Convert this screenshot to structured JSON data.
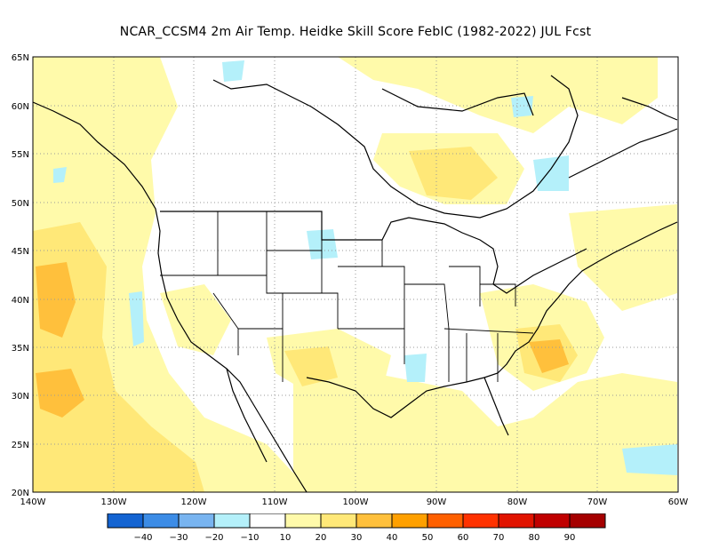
{
  "title": "NCAR_CCSM4  2m Air Temp. Heidke Skill Score FebIC (1982-2022) JUL Fcst",
  "lat_ticks": [
    "65N",
    "60N",
    "55N",
    "50N",
    "45N",
    "40N",
    "35N",
    "30N",
    "25N",
    "20N"
  ],
  "lon_ticks": [
    "140W",
    "130W",
    "120W",
    "110W",
    "100W",
    "90W",
    "80W",
    "70W",
    "60W"
  ],
  "colorbar": {
    "colors": [
      "#1464d2",
      "#3c8ce6",
      "#78b4f0",
      "#b4f0fa",
      "#ffffff",
      "#fffaaa",
      "#ffe878",
      "#ffc03c",
      "#ffa000",
      "#ff6000",
      "#ff3200",
      "#e11400",
      "#c00000",
      "#a50000"
    ],
    "labels": [
      "−40",
      "−30",
      "−20",
      "−10",
      "10",
      "20",
      "30",
      "40",
      "50",
      "60",
      "70",
      "80",
      "90"
    ]
  },
  "colors": {
    "land_outline": "#000000",
    "grid": "#9a9a9a"
  }
}
